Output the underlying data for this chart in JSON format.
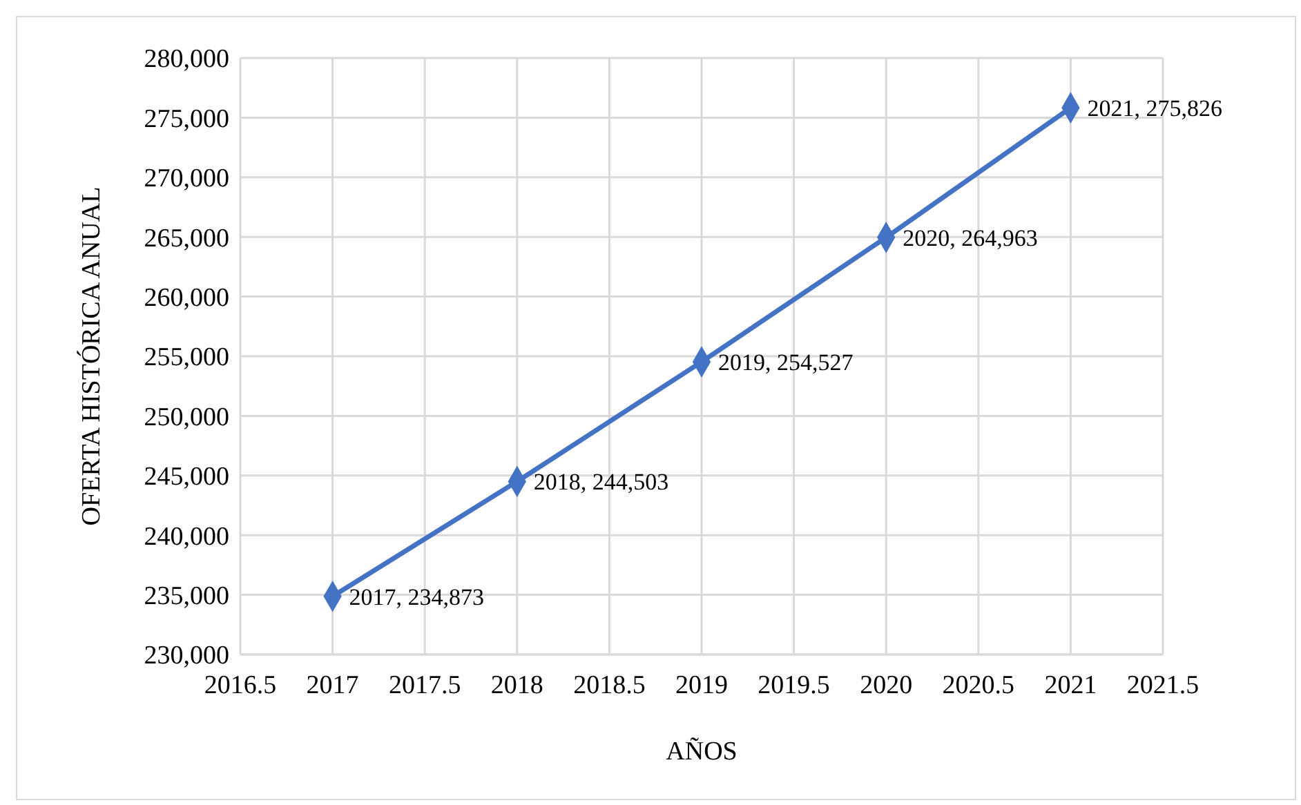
{
  "chart_data": {
    "type": "line",
    "xlabel": "AÑOS",
    "ylabel": "OFERTA HISTÓRICA ANUAL",
    "x": [
      2017,
      2018,
      2019,
      2020,
      2021
    ],
    "series": [
      {
        "color": "#4472c4",
        "values": [
          234873,
          244503,
          254527,
          264963,
          275826
        ],
        "value_labels": [
          "2017, 234,873",
          "2018, 244,503",
          "2019, 254,527",
          "2020, 264,963",
          "2021, 275,826"
        ]
      }
    ],
    "xlim": [
      2016.5,
      2021.5
    ],
    "xticks": [
      2016.5,
      2017,
      2017.5,
      2018,
      2018.5,
      2019,
      2019.5,
      2020,
      2020.5,
      2021,
      2021.5
    ],
    "ylim": [
      230000,
      280000
    ],
    "yticks": [
      {
        "value": 230000,
        "label": "230,000"
      },
      {
        "value": 235000,
        "label": "235,000"
      },
      {
        "value": 240000,
        "label": "240,000"
      },
      {
        "value": 245000,
        "label": "245,000"
      },
      {
        "value": 250000,
        "label": "250,000"
      },
      {
        "value": 255000,
        "label": "255,000"
      },
      {
        "value": 260000,
        "label": "260,000"
      },
      {
        "value": 265000,
        "label": "265,000"
      },
      {
        "value": 270000,
        "label": "270,000"
      },
      {
        "value": 275000,
        "label": "275,000"
      },
      {
        "value": 280000,
        "label": "280,000"
      }
    ],
    "grid": true,
    "marker": "diamond"
  }
}
